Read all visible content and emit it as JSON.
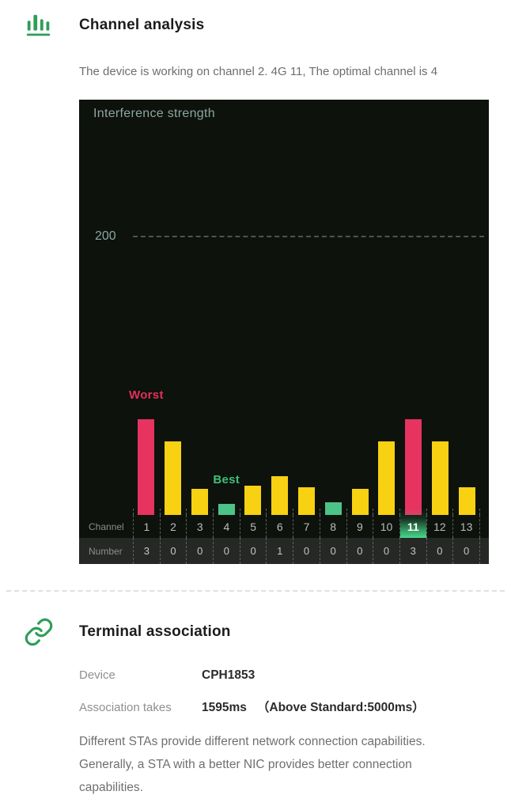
{
  "channel_section": {
    "title": "Channel analysis",
    "subtitle": "The device is working on channel 2. 4G 11,  The optimal channel is 4"
  },
  "chart_data": {
    "type": "bar",
    "title": "Interference strength",
    "ylabel": "Interference strength",
    "xlabel": "Channel",
    "categories": [
      "1",
      "2",
      "3",
      "4",
      "5",
      "6",
      "7",
      "8",
      "9",
      "10",
      "11",
      "12",
      "13"
    ],
    "values": [
      69,
      53,
      19,
      8,
      21,
      28,
      20,
      9,
      19,
      53,
      69,
      53,
      20
    ],
    "bar_colors": [
      "#E6335F",
      "#F7D112",
      "#F7D112",
      "#4CC487",
      "#F7D112",
      "#F7D112",
      "#F7D112",
      "#4CC487",
      "#F7D112",
      "#F7D112",
      "#E6335F",
      "#F7D112",
      "#F7D112"
    ],
    "counts": [
      "3",
      "0",
      "0",
      "0",
      "0",
      "1",
      "0",
      "0",
      "0",
      "0",
      "3",
      "0",
      "0"
    ],
    "gridline_value": 200,
    "gridline_label": "200",
    "ylim": [
      0,
      300
    ],
    "legend": "none",
    "grid": "single horizontal dashed line at 200",
    "current_channel": 11,
    "row_labels": {
      "channel": "Channel",
      "number": "Number"
    },
    "annotations": [
      {
        "text": "Worst",
        "channel": 1,
        "color": "#E23158"
      },
      {
        "text": "Best",
        "channel": 4,
        "color": "#3FBF79"
      }
    ]
  },
  "terminal_section": {
    "title": "Terminal association",
    "rows": [
      {
        "label": "Device",
        "value": "CPH1853",
        "note": ""
      },
      {
        "label": "Association takes",
        "value": "1595ms",
        "note": "（Above Standard:5000ms）"
      }
    ],
    "description": "Different STAs provide different network connection capabilities.  Generally,  a STA with a better NIC provides better connection capabilities."
  },
  "colors": {
    "chart_bg": "#0D120D",
    "number_row_bg": "#252825",
    "axis_text": "#8EA6A0",
    "dash_line": "#4F544F",
    "sep_dash": "#5F635F",
    "highlight_green": "#47D88A",
    "icon_green": "#2E9E58",
    "worst_red": "#E23158",
    "best_green": "#3FBF79"
  }
}
